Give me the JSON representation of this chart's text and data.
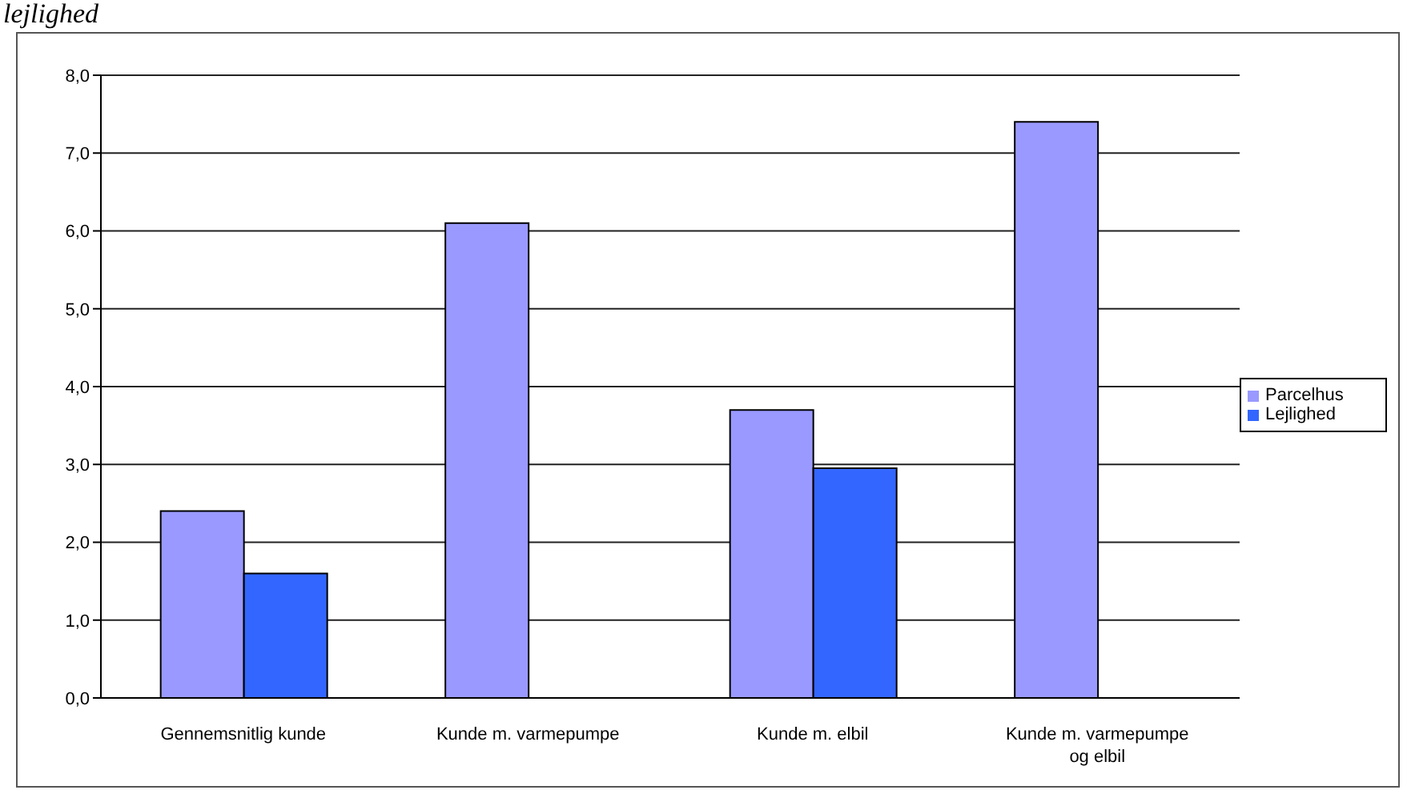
{
  "chart_data": {
    "type": "bar",
    "annotations": [
      "lejlighed"
    ],
    "categories": [
      "Gennemsnitlig kunde",
      "Kunde m. varmepumpe",
      "Kunde m. elbil",
      "Kunde m. varmepumpe og elbil"
    ],
    "series": [
      {
        "name": "Parcelhus",
        "color": "#9999ff",
        "values": [
          2.4,
          6.1,
          3.7,
          7.4
        ]
      },
      {
        "name": "Lejlighed",
        "color": "#3366ff",
        "values": [
          1.6,
          null,
          2.95,
          null
        ]
      }
    ],
    "ylim": [
      0,
      8
    ],
    "yticks": [
      {
        "value": 0,
        "label": "0,0"
      },
      {
        "value": 1,
        "label": "1,0"
      },
      {
        "value": 2,
        "label": "2,0"
      },
      {
        "value": 3,
        "label": "3,0"
      },
      {
        "value": 4,
        "label": "4,0"
      },
      {
        "value": 5,
        "label": "5,0"
      },
      {
        "value": 6,
        "label": "6,0"
      },
      {
        "value": 7,
        "label": "7,0"
      },
      {
        "value": 8,
        "label": "8,0"
      }
    ],
    "grid": "y",
    "legend": "right"
  }
}
